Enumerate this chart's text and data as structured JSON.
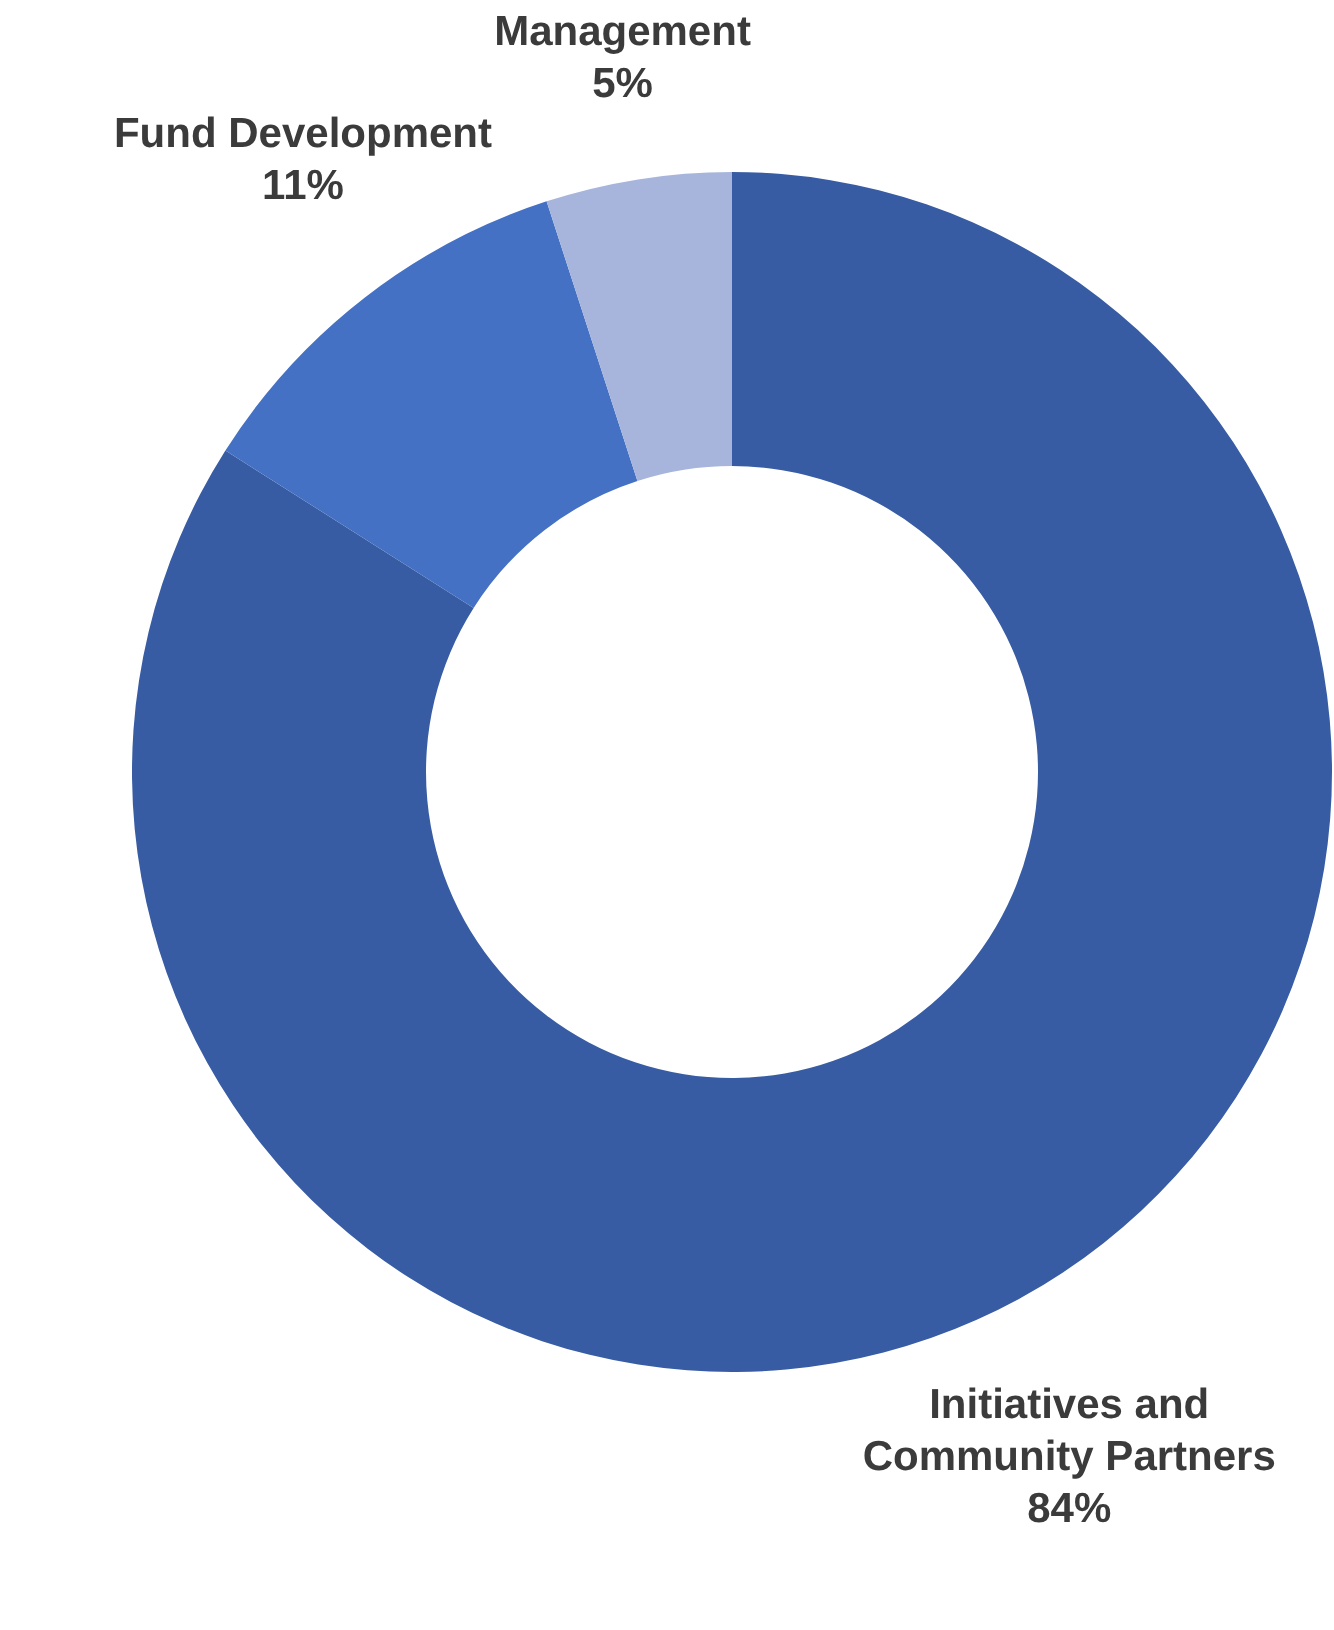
{
  "chart_data": {
    "type": "donut",
    "categories": [
      "Initiatives and Community Partners",
      "Fund Development",
      "Management"
    ],
    "values": [
      84,
      11,
      5
    ],
    "colors": [
      "#375ca3",
      "#4471c3",
      "#a7b5dc"
    ],
    "value_labels": [
      "84%",
      "11%",
      "5%"
    ]
  }
}
